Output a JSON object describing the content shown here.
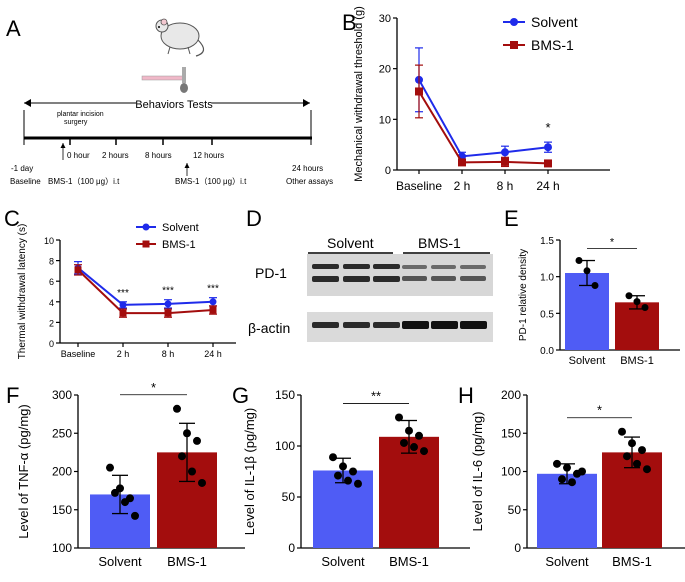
{
  "colors": {
    "solvent": "#4f5cf5",
    "bms": "#a30d0d",
    "line_solvent": "#1f2bea",
    "line_bms": "#a30d0d",
    "surgery_bar": "#f0b8c8"
  },
  "panels": {
    "A": {
      "letter": "A",
      "mouse_icon": "mouse-icon",
      "header": "Behaviors Tests",
      "plantar": [
        "plantar incision",
        "surgery"
      ],
      "ticks": [
        "-1 day",
        "0 hour",
        "2 hours",
        "8 hours",
        "12 hours",
        "24 hours"
      ],
      "bottom": [
        "Baseline",
        "BMS-1（100 μg）i.t",
        "BMS-1（100 μg）i.t",
        "Other assays"
      ]
    },
    "B": {
      "letter": "B",
      "type": "line",
      "ylabel": "Mechanical withdrawal threshold (g)",
      "categories": [
        "Baseline",
        "2 h",
        "8 h",
        "24 h"
      ],
      "ylim": [
        0,
        30
      ],
      "yticks": [
        0,
        10,
        20,
        30
      ],
      "series": [
        {
          "name": "Solvent",
          "values": [
            17.8,
            2.7,
            3.5,
            4.5
          ],
          "err": [
            6.3,
            0.8,
            1.2,
            1.0
          ]
        },
        {
          "name": "BMS-1",
          "values": [
            15.5,
            1.5,
            1.6,
            1.3
          ],
          "err": [
            5.2,
            0.4,
            0.9,
            0.4
          ]
        }
      ],
      "annotations": [
        {
          "category": "24 h",
          "text": "*"
        }
      ]
    },
    "C": {
      "letter": "C",
      "type": "line",
      "ylabel": "Thermal withdrawal latency (s)",
      "categories": [
        "Baseline",
        "2 h",
        "8 h",
        "24 h"
      ],
      "ylim": [
        0,
        10
      ],
      "yticks": [
        0,
        2,
        4,
        6,
        8,
        10
      ],
      "series": [
        {
          "name": "Solvent",
          "values": [
            7.3,
            3.7,
            3.8,
            4.0
          ],
          "err": [
            0.6,
            0.3,
            0.4,
            0.4
          ]
        },
        {
          "name": "BMS-1",
          "values": [
            7.1,
            2.9,
            2.9,
            3.2
          ],
          "err": [
            0.5,
            0.4,
            0.4,
            0.4
          ]
        }
      ],
      "annotations": [
        {
          "category": "2 h",
          "text": "***"
        },
        {
          "category": "8 h",
          "text": "***"
        },
        {
          "category": "24 h",
          "text": "***"
        }
      ]
    },
    "D": {
      "letter": "D",
      "groups": [
        "Solvent",
        "BMS-1"
      ],
      "rows": [
        "PD-1",
        "β-actin"
      ]
    },
    "E": {
      "letter": "E",
      "type": "bar",
      "ylabel": "PD-1 relative density",
      "categories": [
        "Solvent",
        "BMS-1"
      ],
      "values": [
        1.05,
        0.65
      ],
      "err": [
        0.17,
        0.09
      ],
      "points": [
        [
          1.22,
          1.08,
          0.88
        ],
        [
          0.74,
          0.66,
          0.58
        ]
      ],
      "ylim": [
        0,
        1.5
      ],
      "yticks": [
        0.0,
        0.5,
        1.0,
        1.5
      ],
      "tick_labels": [
        "0.0",
        "0.5",
        "1.0",
        "1.5"
      ],
      "sig": "*"
    },
    "F": {
      "letter": "F",
      "type": "bar",
      "ylabel": "Level of TNF-α (pg/mg)",
      "categories": [
        "Solvent",
        "BMS-1"
      ],
      "values": [
        170,
        225
      ],
      "err": [
        25,
        38
      ],
      "points": [
        [
          205,
          178,
          165,
          172,
          160,
          142
        ],
        [
          282,
          250,
          240,
          220,
          200,
          185
        ]
      ],
      "ylim": [
        100,
        300
      ],
      "yticks": [
        100,
        150,
        200,
        250,
        300
      ],
      "tick_labels": [
        "100",
        "150",
        "200",
        "250",
        "300"
      ],
      "sig": "*"
    },
    "G": {
      "letter": "G",
      "type": "bar",
      "ylabel": "Level of IL-1β (pg/mg)",
      "categories": [
        "Solvent",
        "BMS-1"
      ],
      "values": [
        76,
        109
      ],
      "err": [
        12,
        16
      ],
      "points": [
        [
          89,
          80,
          75,
          71,
          66,
          63
        ],
        [
          128,
          115,
          110,
          103,
          99,
          95
        ]
      ],
      "ylim": [
        0,
        150
      ],
      "yticks": [
        0,
        50,
        100,
        150
      ],
      "tick_labels": [
        "0",
        "50",
        "100",
        "150"
      ],
      "sig": "**"
    },
    "H": {
      "letter": "H",
      "type": "bar",
      "ylabel": "Level of IL-6 (pg/mg)",
      "categories": [
        "Solvent",
        "BMS-1"
      ],
      "values": [
        97,
        125
      ],
      "err": [
        13,
        20
      ],
      "points": [
        [
          110,
          105,
          97,
          90,
          86,
          100
        ],
        [
          152,
          137,
          128,
          120,
          110,
          103
        ]
      ],
      "ylim": [
        0,
        200
      ],
      "yticks": [
        0,
        50,
        100,
        150,
        200
      ],
      "tick_labels": [
        "0",
        "50",
        "100",
        "150",
        "200"
      ],
      "sig": "*"
    }
  }
}
